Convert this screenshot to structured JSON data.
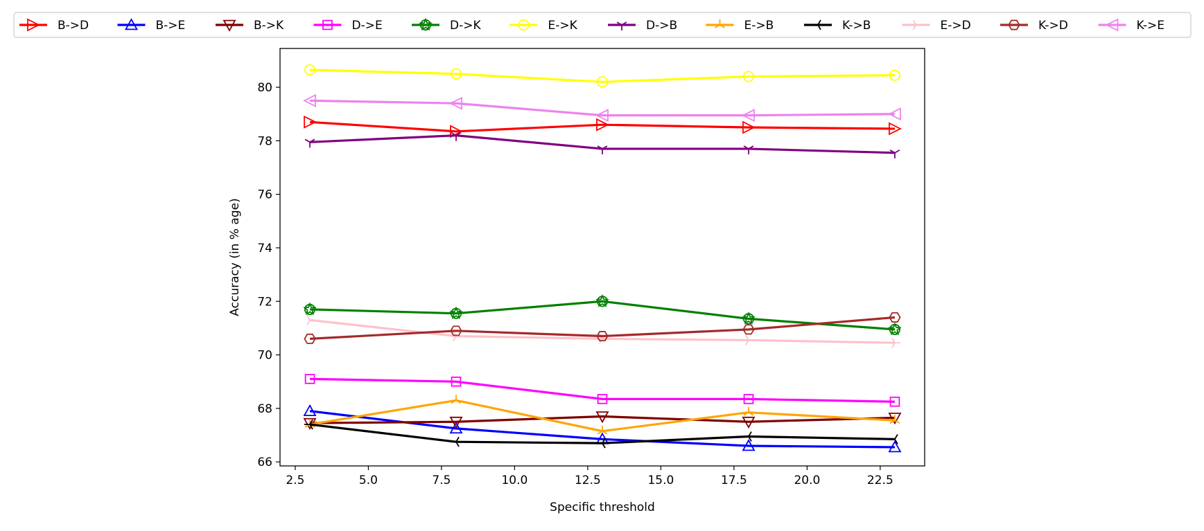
{
  "chart_data": {
    "type": "line",
    "title": "",
    "xlabel": "Specific threshold",
    "ylabel": "Accuracy (in % age)",
    "xlim": [
      1.98,
      24.02
    ],
    "ylim": [
      65.85,
      81.45
    ],
    "xticks": [
      2.5,
      5.0,
      7.5,
      10.0,
      12.5,
      15.0,
      17.5,
      20.0,
      22.5
    ],
    "xtick_labels": [
      "2.5",
      "5.0",
      "7.5",
      "10.0",
      "12.5",
      "15.0",
      "17.5",
      "20.0",
      "22.5"
    ],
    "yticks": [
      66,
      68,
      70,
      72,
      74,
      76,
      78,
      80
    ],
    "ytick_labels": [
      "66",
      "68",
      "70",
      "72",
      "74",
      "76",
      "78",
      "80"
    ],
    "grid": false,
    "legend_position": "top",
    "x": [
      3,
      8,
      13,
      18,
      23
    ],
    "series": [
      {
        "name": "B->D",
        "color": "#ff0000",
        "marker": "triangle-right",
        "values": [
          78.7,
          78.35,
          78.6,
          78.5,
          78.45
        ]
      },
      {
        "name": "B->E",
        "color": "#0000ff",
        "marker": "triangle-up",
        "values": [
          67.9,
          67.25,
          66.85,
          66.6,
          66.55
        ]
      },
      {
        "name": "B->K",
        "color": "#800000",
        "marker": "triangle-down",
        "values": [
          67.45,
          67.5,
          67.7,
          67.5,
          67.65
        ]
      },
      {
        "name": "D->E",
        "color": "#ff00ff",
        "marker": "square",
        "values": [
          69.1,
          69.0,
          68.35,
          68.35,
          68.25
        ]
      },
      {
        "name": "D->K",
        "color": "#008000",
        "marker": "star",
        "values": [
          71.7,
          71.55,
          72.0,
          71.35,
          70.95
        ]
      },
      {
        "name": "E->K",
        "color": "#ffff00",
        "marker": "circle",
        "values": [
          80.65,
          80.5,
          80.2,
          80.4,
          80.45
        ]
      },
      {
        "name": "D->B",
        "color": "#800080",
        "marker": "tri-down",
        "values": [
          77.95,
          78.2,
          77.7,
          77.7,
          77.55
        ]
      },
      {
        "name": "E->B",
        "color": "#ffa500",
        "marker": "tri-up",
        "values": [
          67.4,
          68.3,
          67.15,
          67.85,
          67.55
        ]
      },
      {
        "name": "K->B",
        "color": "#000000",
        "marker": "tri-left",
        "values": [
          67.4,
          66.75,
          66.7,
          66.95,
          66.85
        ]
      },
      {
        "name": "E->D",
        "color": "#ffc0cb",
        "marker": "tri-right",
        "values": [
          71.3,
          70.7,
          70.6,
          70.55,
          70.45
        ]
      },
      {
        "name": "K->D",
        "color": "#a52a2a",
        "marker": "hexagon",
        "values": [
          70.6,
          70.9,
          70.7,
          70.95,
          71.4
        ]
      },
      {
        "name": "K->E",
        "color": "#ee82ee",
        "marker": "triangle-left",
        "values": [
          79.5,
          79.4,
          78.95,
          78.95,
          79.0
        ]
      }
    ]
  }
}
